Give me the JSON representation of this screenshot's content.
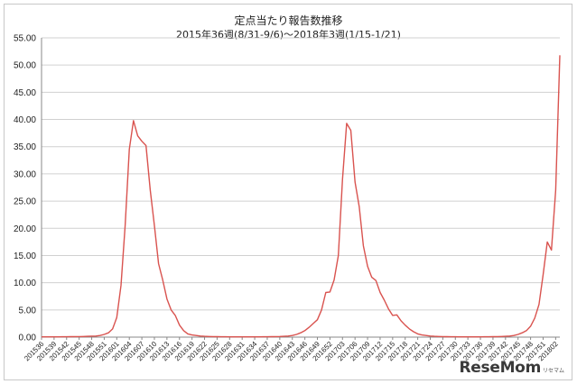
{
  "chart_data": {
    "type": "line",
    "title": "定点当たり報告数推移",
    "subtitle": "2015年36週(8/31-9/6)～2018年3週(1/15-1/21)",
    "xlabel": "",
    "ylabel": "",
    "ylim": [
      0,
      55
    ],
    "yticks": [
      "0.00",
      "5.00",
      "10.00",
      "15.00",
      "20.00",
      "25.00",
      "30.00",
      "35.00",
      "40.00",
      "45.00",
      "50.00",
      "55.00"
    ],
    "grid": true,
    "line_color": "#d9534f",
    "x": [
      "201536",
      "201537",
      "201538",
      "201539",
      "201540",
      "201541",
      "201542",
      "201543",
      "201544",
      "201545",
      "201546",
      "201547",
      "201548",
      "201549",
      "201550",
      "201551",
      "201552",
      "201553",
      "201601",
      "201602",
      "201603",
      "201604",
      "201605",
      "201606",
      "201607",
      "201608",
      "201609",
      "201610",
      "201611",
      "201612",
      "201613",
      "201614",
      "201615",
      "201616",
      "201617",
      "201618",
      "201619",
      "201620",
      "201621",
      "201622",
      "201623",
      "201624",
      "201625",
      "201626",
      "201627",
      "201628",
      "201629",
      "201630",
      "201631",
      "201632",
      "201633",
      "201634",
      "201635",
      "201636",
      "201637",
      "201638",
      "201639",
      "201640",
      "201641",
      "201642",
      "201643",
      "201644",
      "201645",
      "201646",
      "201647",
      "201648",
      "201649",
      "201650",
      "201651",
      "201652",
      "201701",
      "201702",
      "201703",
      "201704",
      "201705",
      "201706",
      "201707",
      "201708",
      "201709",
      "201710",
      "201711",
      "201712",
      "201713",
      "201714",
      "201715",
      "201716",
      "201717",
      "201718",
      "201719",
      "201720",
      "201721",
      "201722",
      "201723",
      "201724",
      "201725",
      "201726",
      "201727",
      "201728",
      "201729",
      "201730",
      "201731",
      "201732",
      "201733",
      "201734",
      "201735",
      "201736",
      "201737",
      "201738",
      "201739",
      "201740",
      "201741",
      "201742",
      "201743",
      "201744",
      "201745",
      "201746",
      "201747",
      "201748",
      "201749",
      "201750",
      "201751",
      "201752",
      "201801",
      "201802",
      "201803"
    ],
    "values": [
      0.05,
      0.05,
      0.05,
      0.05,
      0.05,
      0.06,
      0.07,
      0.08,
      0.1,
      0.1,
      0.12,
      0.15,
      0.18,
      0.2,
      0.3,
      0.5,
      0.8,
      1.5,
      3.6,
      9.5,
      20.5,
      34.5,
      39.8,
      37.0,
      36.0,
      35.2,
      27.0,
      20.5,
      13.5,
      10.5,
      7.0,
      5.0,
      4.0,
      2.2,
      1.2,
      0.6,
      0.4,
      0.3,
      0.2,
      0.15,
      0.12,
      0.1,
      0.08,
      0.07,
      0.06,
      0.05,
      0.05,
      0.05,
      0.05,
      0.05,
      0.05,
      0.05,
      0.05,
      0.06,
      0.07,
      0.08,
      0.1,
      0.12,
      0.15,
      0.2,
      0.3,
      0.5,
      0.8,
      1.2,
      1.8,
      2.5,
      3.2,
      5.0,
      8.2,
      8.3,
      10.5,
      15.0,
      29.0,
      39.3,
      38.0,
      28.5,
      24.0,
      16.8,
      13.0,
      11.0,
      10.4,
      8.2,
      6.8,
      5.2,
      4.0,
      4.1,
      3.0,
      2.2,
      1.5,
      1.0,
      0.6,
      0.4,
      0.3,
      0.2,
      0.15,
      0.12,
      0.1,
      0.08,
      0.07,
      0.06,
      0.05,
      0.05,
      0.05,
      0.05,
      0.05,
      0.05,
      0.06,
      0.07,
      0.08,
      0.1,
      0.12,
      0.15,
      0.2,
      0.3,
      0.5,
      0.8,
      1.2,
      2.0,
      3.5,
      6.0,
      11.5,
      17.5,
      16.0,
      27.0,
      51.8
    ],
    "xtick_every": 3
  },
  "watermark": {
    "text": "ReseMom",
    "sub": "リセマム"
  }
}
